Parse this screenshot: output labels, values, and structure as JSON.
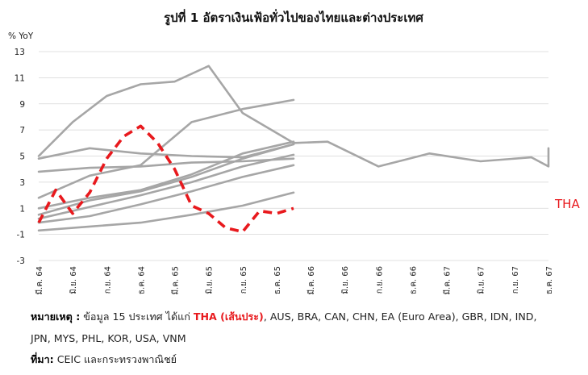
{
  "chart_data": {
    "type": "line",
    "title": "รูปที่ 1 อัตราเงินเฟ้อทั่วไปของไทยและต่างประเทศ",
    "ylabel": "% YoY",
    "ylim": [
      -3,
      13
    ],
    "yticks": [
      -3,
      -1,
      1,
      3,
      5,
      7,
      9,
      11,
      13
    ],
    "x_labels": [
      "มี.ค. 64",
      "มิ.ย. 64",
      "ก.ย. 64",
      "ธ.ค. 64",
      "มี.ค. 65",
      "มิ.ย. 65",
      "ก.ย. 65",
      "ธ.ค. 65",
      "มี.ค. 66",
      "มิ.ย. 66",
      "ก.ย. 66",
      "ธ.ค. 66",
      "มี.ค. 67",
      "มิ.ย. 67",
      "ก.ย. 67",
      "ธ.ค. 67"
    ],
    "highlight": {
      "name": "THA",
      "label": "THA",
      "color": "#e8191d",
      "x": [
        0,
        1.5,
        3,
        4.5,
        6,
        7.5,
        9,
        10.5,
        12,
        13.5,
        15,
        16.5,
        18,
        19.5,
        21,
        22.5
      ],
      "values": [
        -0.1,
        2.4,
        0.6,
        2.2,
        4.8,
        6.5,
        7.3,
        6.0,
        4.0,
        1.2,
        0.6,
        -0.5,
        -0.8,
        0.8,
        0.6,
        1.0
      ]
    },
    "others_color": "#a6a6a6",
    "others": [
      {
        "x": [
          0,
          3,
          6,
          9,
          12,
          15,
          18,
          22.5
        ],
        "values": [
          5.0,
          7.6,
          9.6,
          10.5,
          10.7,
          11.9,
          8.3,
          6.0
        ]
      },
      {
        "x": [
          0,
          4.5,
          9,
          13.5,
          18,
          22.5
        ],
        "values": [
          4.8,
          5.6,
          5.2,
          5.0,
          4.9,
          5.9
        ]
      },
      {
        "x": [
          0,
          4.5,
          9,
          13.5,
          18,
          22.5
        ],
        "values": [
          3.8,
          4.1,
          4.2,
          4.5,
          4.6,
          4.8
        ]
      },
      {
        "x": [
          0,
          4.5,
          9,
          13.5,
          18,
          22.5
        ],
        "values": [
          1.8,
          3.5,
          4.3,
          7.6,
          8.6,
          9.3
        ]
      },
      {
        "x": [
          0,
          4.5,
          9,
          13.5,
          18,
          22.5
        ],
        "values": [
          1.0,
          1.8,
          2.4,
          3.6,
          5.2,
          6.1
        ]
      },
      {
        "x": [
          0,
          4.5,
          9,
          13.5,
          18,
          22.5
        ],
        "values": [
          0.5,
          1.6,
          2.3,
          3.4,
          4.8,
          5.9
        ]
      },
      {
        "x": [
          0,
          4.5,
          9,
          13.5,
          18,
          22.5
        ],
        "values": [
          0.2,
          1.1,
          2.0,
          3.0,
          4.2,
          5.1
        ]
      },
      {
        "x": [
          0,
          4.5,
          9,
          13.5,
          18,
          22.5
        ],
        "values": [
          -0.1,
          0.4,
          1.3,
          2.3,
          3.4,
          4.3
        ]
      },
      {
        "x": [
          0,
          4.5,
          9,
          13.5,
          18,
          22.5
        ],
        "values": [
          -0.7,
          -0.4,
          -0.1,
          0.5,
          1.2,
          2.2
        ]
      },
      {
        "x": [
          22.5,
          25.5,
          30,
          34.5,
          39,
          43.5,
          48,
          52.5
        ],
        "values": [
          6.0,
          6.1,
          4.2,
          5.2,
          4.6,
          4.9,
          4.2,
          5.6
        ]
      }
    ]
  },
  "notes": {
    "remark_label": "หมายเหตุ :",
    "remark_prefix": "ข้อมูล 15 ประเทศ ได้แก่",
    "remark_highlight": "THA (เส้นประ)",
    "remark_line1_rest": ", AUS, BRA, CAN, CHN, EA (Euro Area), GBR, IDN, IND,",
    "remark_line2": "JPN, MYS, PHL, KOR, USA, VNM",
    "source_label": "ที่มา:",
    "source_text": "CEIC และกระทรวงพาณิชย์"
  }
}
